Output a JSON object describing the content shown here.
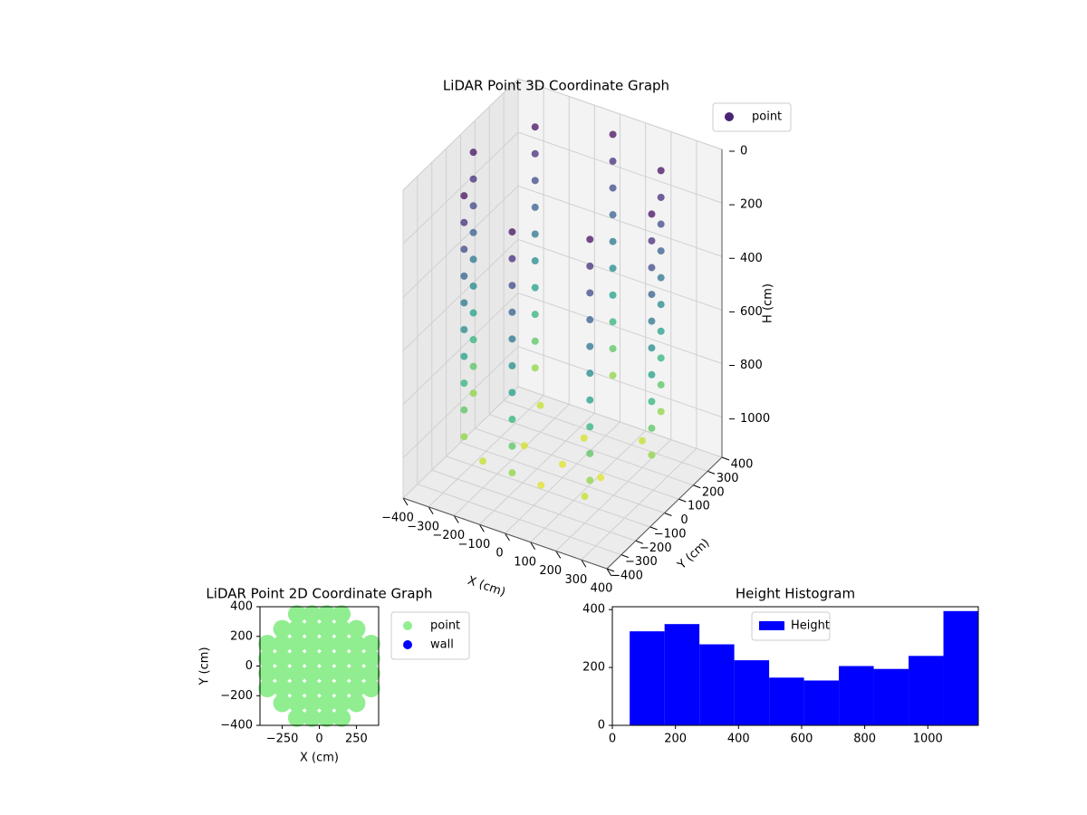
{
  "chart_data": [
    {
      "type": "scatter3d",
      "title": "LiDAR Point 3D Coordinate Graph",
      "xlabel": "X (cm)",
      "ylabel": "Y (cm)",
      "zlabel": "H (cm)",
      "colormap": "viridis",
      "zinvert": true,
      "legend": "upper right",
      "xlim": [
        -400,
        400
      ],
      "ylim": [
        -400,
        400
      ],
      "zlim": [
        0,
        1150
      ],
      "xticks": [
        {
          "value": -400,
          "label": "−400"
        },
        {
          "value": -300,
          "label": "−300"
        },
        {
          "value": -200,
          "label": "−200"
        },
        {
          "value": -100,
          "label": "−100"
        },
        0,
        100,
        200,
        300,
        400
      ],
      "yticks": [
        {
          "value": -400,
          "label": "−400"
        },
        {
          "value": -300,
          "label": "−300"
        },
        {
          "value": -200,
          "label": "−200"
        },
        {
          "value": -100,
          "label": "−100"
        },
        0,
        100,
        200,
        300,
        400
      ],
      "zticks": [
        0,
        200,
        400,
        600,
        800,
        1000
      ],
      "series": [
        {
          "name": "point",
          "color": "#482475",
          "x": [
            350,
            247,
            0,
            -247,
            -350,
            -247,
            0,
            247,
            350,
            247,
            0,
            -247,
            -350,
            -247,
            0,
            247,
            350,
            247,
            0,
            -247,
            -350,
            -247,
            0,
            247,
            350,
            247,
            0,
            -247,
            -350,
            -247,
            0,
            247,
            350,
            247,
            0,
            -247,
            -350,
            -247,
            0,
            247,
            350,
            247,
            0,
            -247,
            -350,
            -247,
            0,
            247,
            350,
            247,
            0,
            -247,
            -350,
            -247,
            0,
            247,
            350,
            247,
            0,
            -247,
            -350,
            -247,
            0,
            247,
            350,
            247,
            0,
            -247,
            -350,
            -247,
            0,
            247,
            350,
            247,
            0,
            -247,
            -350,
            -247,
            0,
            247,
            0,
            150,
            0,
            -150,
            0,
            200,
            -200,
            -200,
            200
          ],
          "y": [
            0,
            247,
            350,
            247,
            0,
            -247,
            -350,
            -247,
            0,
            247,
            350,
            247,
            0,
            -247,
            -350,
            -247,
            0,
            247,
            350,
            247,
            0,
            -247,
            -350,
            -247,
            0,
            247,
            350,
            247,
            0,
            -247,
            -350,
            -247,
            0,
            247,
            350,
            247,
            0,
            -247,
            -350,
            -247,
            0,
            247,
            350,
            247,
            0,
            -247,
            -350,
            -247,
            0,
            247,
            350,
            247,
            0,
            -247,
            -350,
            -247,
            0,
            247,
            350,
            247,
            0,
            -247,
            -350,
            -247,
            0,
            247,
            350,
            247,
            0,
            -247,
            -350,
            -247,
            0,
            247,
            350,
            247,
            0,
            -247,
            -350,
            -247,
            0,
            0,
            150,
            0,
            -150,
            200,
            200,
            -200,
            -200
          ],
          "h": [
            50,
            50,
            50,
            50,
            50,
            50,
            50,
            50,
            150,
            150,
            150,
            150,
            150,
            150,
            150,
            150,
            250,
            250,
            250,
            250,
            250,
            250,
            250,
            250,
            350,
            350,
            350,
            350,
            350,
            350,
            350,
            350,
            450,
            450,
            450,
            450,
            450,
            450,
            450,
            450,
            550,
            550,
            550,
            550,
            550,
            550,
            550,
            550,
            650,
            650,
            650,
            650,
            650,
            650,
            650,
            650,
            750,
            750,
            750,
            750,
            750,
            750,
            750,
            750,
            850,
            850,
            850,
            850,
            850,
            850,
            850,
            850,
            950,
            950,
            950,
            950,
            950,
            950,
            950,
            950,
            1100,
            1100,
            1080,
            1080,
            1100,
            1050,
            1050,
            1050,
            1050
          ]
        }
      ]
    },
    {
      "type": "scatter",
      "title": "LiDAR Point 2D Coordinate Graph",
      "xlabel": "X (cm)",
      "ylabel": "Y (cm)",
      "legend": "outside right",
      "xlim": [
        -400,
        400
      ],
      "ylim": [
        -400,
        400
      ],
      "xticks": [
        {
          "value": -250,
          "label": "−250"
        },
        0,
        250
      ],
      "yticks": [
        {
          "value": -400,
          "label": "−400"
        },
        {
          "value": -200,
          "label": "−200"
        },
        0,
        200,
        400
      ],
      "series": [
        {
          "name": "point",
          "color": "#90ee90",
          "x": [
            -150,
            -50,
            50,
            150,
            -250,
            -150,
            -50,
            50,
            150,
            250,
            -350,
            -250,
            -150,
            -50,
            50,
            150,
            250,
            350,
            -350,
            -250,
            -150,
            -50,
            50,
            150,
            250,
            350,
            -350,
            -250,
            -150,
            -50,
            50,
            150,
            250,
            350,
            -350,
            -250,
            -150,
            -50,
            50,
            150,
            250,
            350,
            -250,
            -150,
            -50,
            50,
            150,
            250,
            -150,
            -50,
            50,
            150
          ],
          "y": [
            -350,
            -350,
            -350,
            -350,
            -250,
            -250,
            -250,
            -250,
            -250,
            -250,
            -150,
            -150,
            -150,
            -150,
            -150,
            -150,
            -150,
            -150,
            -50,
            -50,
            -50,
            -50,
            -50,
            -50,
            -50,
            -50,
            50,
            50,
            50,
            50,
            50,
            50,
            50,
            50,
            150,
            150,
            150,
            150,
            150,
            150,
            150,
            150,
            250,
            250,
            250,
            250,
            250,
            250,
            350,
            350,
            350,
            350
          ]
        },
        {
          "name": "wall",
          "color": "#0000ff",
          "x": [],
          "y": []
        }
      ]
    },
    {
      "type": "histogram",
      "title": "Height Histogram",
      "legend": "upper center",
      "series": [
        {
          "name": "Height",
          "color": "#0000ff",
          "bins": [
            55,
            165.5,
            276,
            386.5,
            497,
            607.5,
            718,
            828.5,
            939,
            1049.5,
            1160
          ],
          "values": [
            325,
            350,
            280,
            225,
            165,
            155,
            205,
            195,
            240,
            395
          ]
        }
      ],
      "xlim": [
        0,
        1160
      ],
      "ylim": [
        0,
        410
      ],
      "xticks": [
        0,
        200,
        400,
        600,
        800,
        1000
      ],
      "yticks": [
        0,
        200,
        400
      ]
    }
  ]
}
